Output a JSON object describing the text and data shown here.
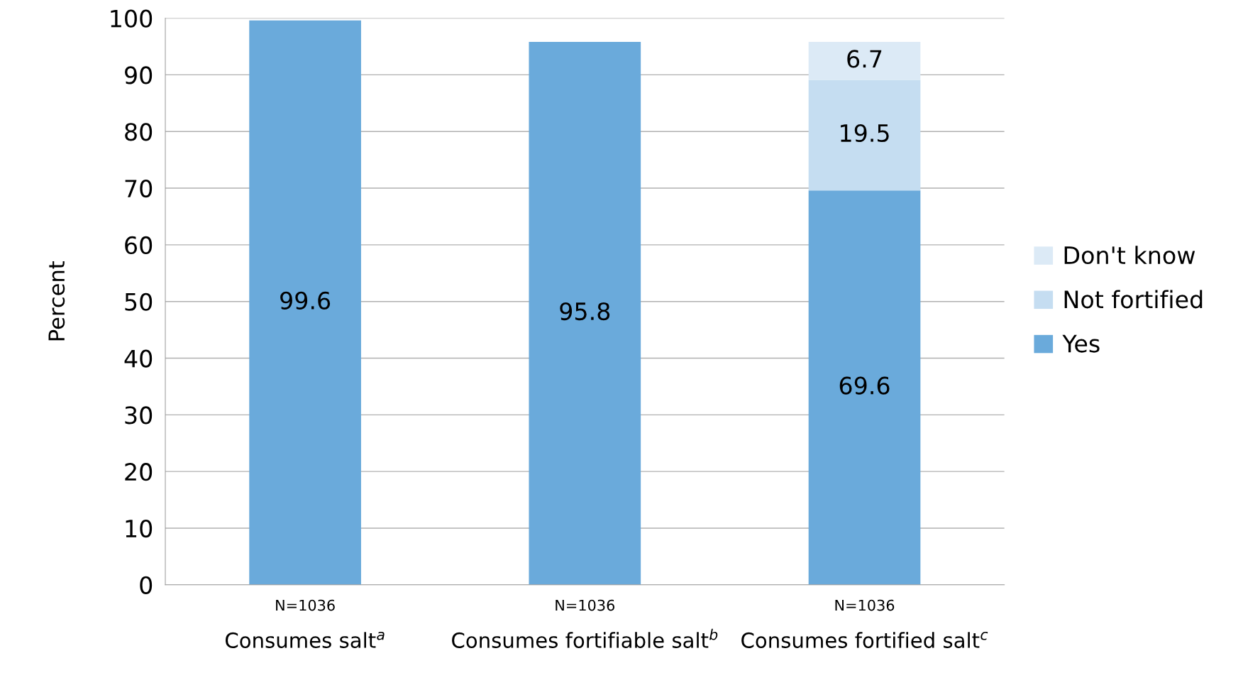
{
  "chart_data": {
    "type": "bar",
    "stacked": true,
    "categories": [
      "Consumes salt$^{a}$",
      "Consumes fortifiable salt$^{b}$",
      "Consumes fortified salt$^{c}$"
    ],
    "series": [
      {
        "name": "Yes",
        "color": "#6aaadb",
        "values": [
          99.6,
          95.8,
          69.6
        ]
      },
      {
        "name": "Not fortified",
        "color": "#c5ddf1",
        "values": [
          null,
          null,
          19.5
        ]
      },
      {
        "name": "Don't know",
        "color": "#dceaf6",
        "values": [
          null,
          null,
          6.7
        ]
      }
    ],
    "ylabel": "Percent",
    "ylim": [
      0,
      100
    ],
    "yticks": [
      0,
      10,
      20,
      30,
      40,
      50,
      60,
      70,
      80,
      90,
      100
    ],
    "grid": "y",
    "legend": "right",
    "data_labels": true,
    "annotations": [
      "N=1036",
      "N=1036",
      "N=1036"
    ]
  }
}
